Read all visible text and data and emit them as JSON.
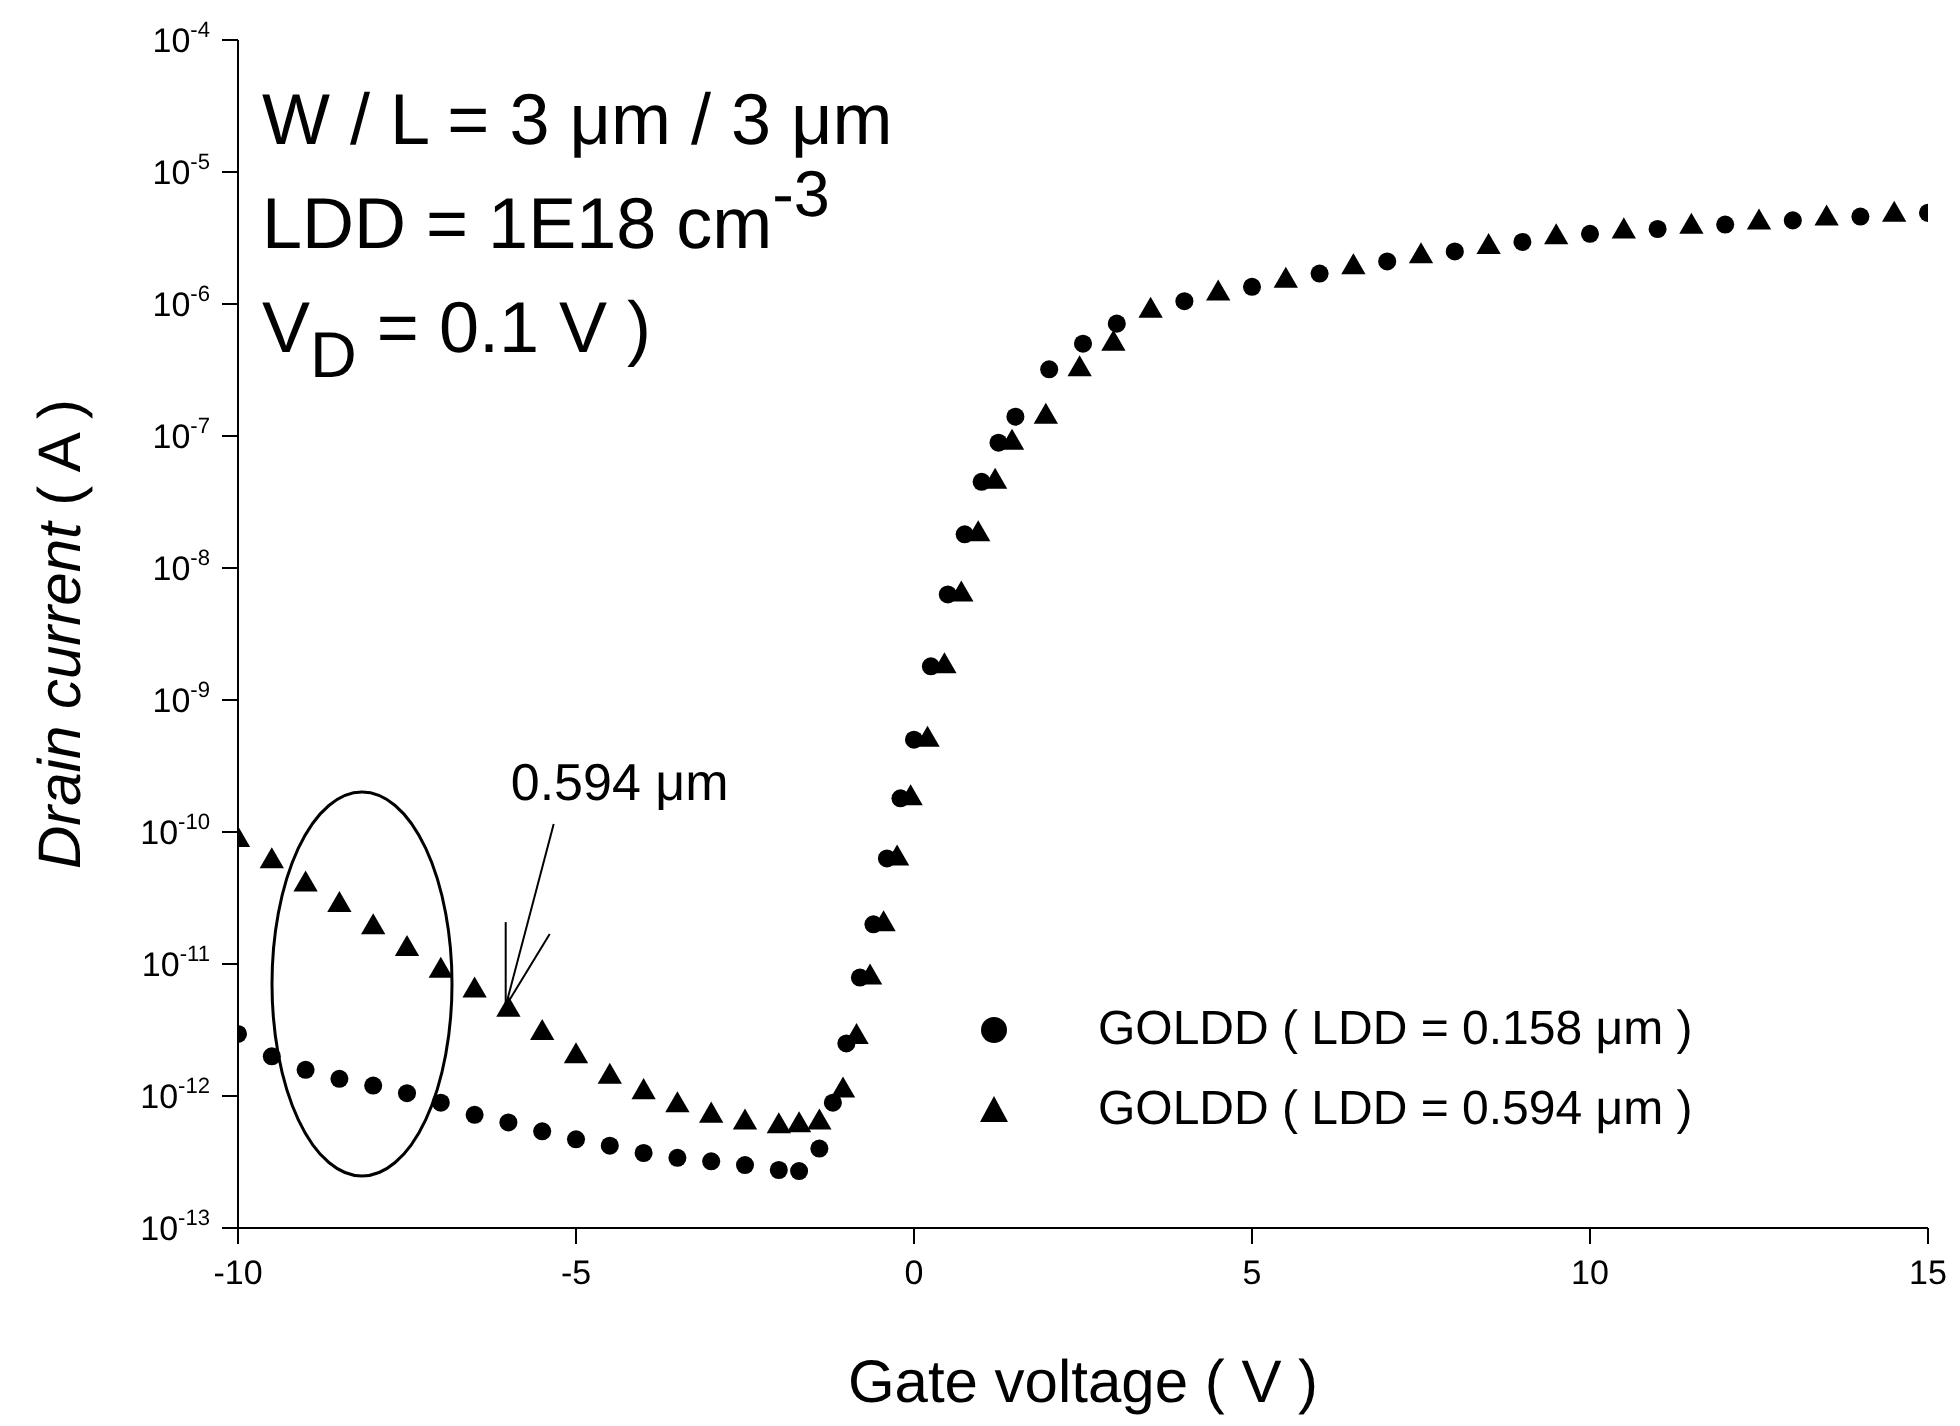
{
  "chart_data": {
    "type": "scatter",
    "xlabel": "Gate voltage ( V )",
    "ylabel": "Drain current ( A )",
    "x": [
      -10,
      -9.5,
      -9,
      -8.5,
      -8,
      -7.5,
      -7,
      -6.5,
      -6,
      -5.5,
      -5,
      -4.5,
      -4,
      -3.5,
      -3,
      -2.5,
      -2,
      -1.7,
      -1.4,
      -1.2,
      -1,
      -0.8,
      -0.6,
      -0.4,
      -0.2,
      0,
      0.25,
      0.5,
      0.75,
      1,
      1.25,
      1.5,
      2,
      2.5,
      3,
      4,
      5,
      6,
      7,
      8,
      9,
      10,
      11,
      12,
      13,
      14,
      15
    ],
    "series": [
      {
        "name": "GOLDD ( LDD = 0.158 μm )",
        "color": "#000000",
        "marker": "circle",
        "values": [
          2.95e-12,
          2e-12,
          1.58e-12,
          1.35e-12,
          1.2e-12,
          1.05e-12,
          8.9e-13,
          7.2e-13,
          6.3e-13,
          5.4e-13,
          4.7e-13,
          4.2e-13,
          3.7e-13,
          3.4e-13,
          3.2e-13,
          3e-13,
          2.75e-13,
          2.7e-13,
          4e-13,
          8.9e-13,
          2.5e-12,
          7.9e-12,
          2e-11,
          6.3e-11,
          1.8e-10,
          5e-10,
          1.8e-09,
          6.3e-09,
          1.8e-08,
          4.5e-08,
          8.9e-08,
          1.4e-07,
          3.2e-07,
          5e-07,
          7.1e-07,
          1.05e-06,
          1.35e-06,
          1.7e-06,
          2.1e-06,
          2.5e-06,
          2.95e-06,
          3.4e-06,
          3.7e-06,
          4e-06,
          4.3e-06,
          4.6e-06,
          4.9e-06
        ]
      },
      {
        "name": "GOLDD ( LDD = 0.594 μm )",
        "color": "#000000",
        "marker": "triangle",
        "x": [
          -10,
          -9.5,
          -9,
          -8.5,
          -8,
          -7.5,
          -7,
          -6.5,
          -6,
          -5.5,
          -5,
          -4.5,
          -4,
          -3.5,
          -3,
          -2.5,
          -2,
          -1.7,
          -1.4,
          -1.05,
          -0.85,
          -0.65,
          -0.45,
          -0.25,
          -0.05,
          0.2,
          0.45,
          0.7,
          0.95,
          1.2,
          1.45,
          1.95,
          2.45,
          2.95,
          3.5,
          4.5,
          5.5,
          6.5,
          7.5,
          8.5,
          9.5,
          10.5,
          11.5,
          12.5,
          13.5,
          14.5
        ],
        "values": [
          8.7e-11,
          6e-11,
          4e-11,
          2.8e-11,
          1.9e-11,
          1.3e-11,
          8.9e-12,
          6.3e-12,
          4.5e-12,
          3e-12,
          2e-12,
          1.4e-12,
          1.07e-12,
          8.5e-13,
          7.1e-13,
          6.3e-13,
          5.9e-13,
          6e-13,
          6.3e-13,
          1.1e-12,
          2.8e-12,
          7.9e-12,
          2e-11,
          6.3e-11,
          1.8e-10,
          5e-10,
          1.8e-09,
          6.3e-09,
          1.8e-08,
          4.5e-08,
          8.9e-08,
          1.4e-07,
          3.2e-07,
          5e-07,
          8.9e-07,
          1.2e-06,
          1.5e-06,
          1.9e-06,
          2.3e-06,
          2.7e-06,
          3.2e-06,
          3.55e-06,
          3.85e-06,
          4.15e-06,
          4.45e-06,
          4.75e-06
        ]
      }
    ],
    "xlim": [
      -10,
      15
    ],
    "xticks": [
      -10,
      -5,
      0,
      5,
      10,
      15
    ],
    "ylim": [
      1e-13,
      0.0001
    ],
    "log": true,
    "yticks": [
      {
        "value": 1e-13,
        "label": "10$^{-13}$"
      },
      {
        "value": 1e-12,
        "label": "10$^{-12}$"
      },
      {
        "value": 1e-11,
        "label": "10$^{-11}$"
      },
      {
        "value": 1e-10,
        "label": "10$^{-10}$"
      },
      {
        "value": 1e-09,
        "label": "10$^{-9}$"
      },
      {
        "value": 1e-08,
        "label": "10$^{-8}$"
      },
      {
        "value": 1e-07,
        "label": "10$^{-7}$"
      },
      {
        "value": 1e-06,
        "label": "10$^{-6}$"
      },
      {
        "value": 1e-05,
        "label": "10$^{-5}$"
      },
      {
        "value": 0.0001,
        "label": "10$^{-4}$"
      }
    ],
    "legend": "bottom right",
    "annotations": [
      "W / L = 3 μm / 3 μm",
      "LDD = 1E18 cm$^{-3}$",
      "V$_{D}$ = 0.1 V )",
      {
        "text": "0.594 μm",
        "x": -6.04,
        "y": 4.8e-12
      }
    ]
  }
}
